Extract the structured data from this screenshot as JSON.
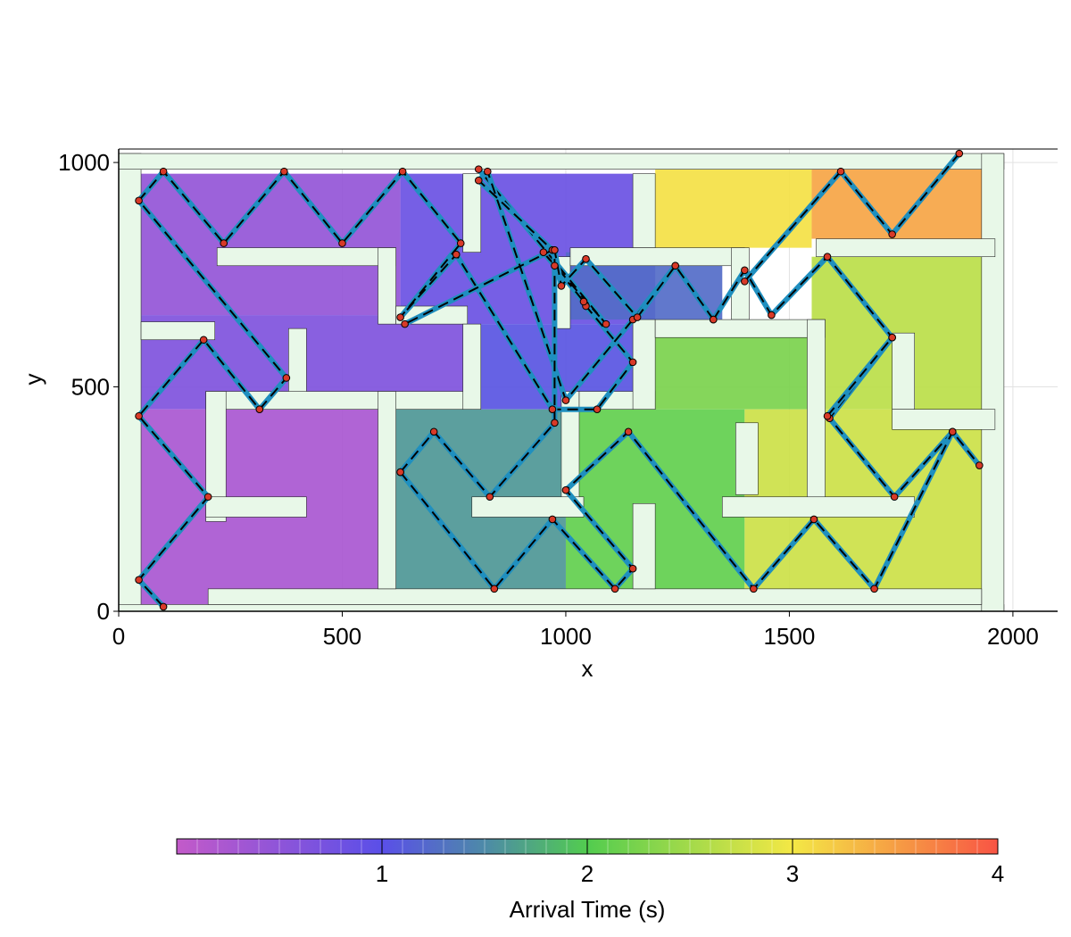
{
  "chart_data": {
    "type": "heatmap",
    "title": "",
    "xlabel": "x",
    "ylabel": "y",
    "xlim": [
      0,
      2100
    ],
    "ylim": [
      0,
      1030
    ],
    "xticks": [
      0,
      500,
      1000,
      1500,
      2000
    ],
    "yticks": [
      0,
      500,
      1000
    ],
    "grid": true,
    "colorbar": {
      "label": "Arrival Time (s)",
      "range": [
        0,
        4
      ],
      "ticks": [
        1,
        2,
        3,
        4
      ],
      "placement": "bottom",
      "stops": [
        "#c35ac9",
        "#5a4fe8",
        "#4d8aa8",
        "#52cc4f",
        "#f4e845",
        "#f85444"
      ]
    },
    "regions": [
      {
        "t": 0.45,
        "x0": 50,
        "y0": 660,
        "x1": 630,
        "y1": 975
      },
      {
        "t": 0.65,
        "x0": 50,
        "y0": 450,
        "x1": 770,
        "y1": 660
      },
      {
        "t": 0.25,
        "x0": 50,
        "y0": 10,
        "x1": 580,
        "y1": 450
      },
      {
        "t": 0.85,
        "x0": 630,
        "y0": 640,
        "x1": 1200,
        "y1": 975
      },
      {
        "t": 1.05,
        "x0": 770,
        "y0": 450,
        "x1": 1200,
        "y1": 640
      },
      {
        "t": 1.25,
        "x0": 1000,
        "y0": 650,
        "x1": 1350,
        "y1": 800
      },
      {
        "t": 1.6,
        "x0": 580,
        "y0": 50,
        "x1": 1000,
        "y1": 450
      },
      {
        "t": 2.1,
        "x0": 1000,
        "y0": 50,
        "x1": 1400,
        "y1": 450
      },
      {
        "t": 2.25,
        "x0": 1200,
        "y0": 450,
        "x1": 1550,
        "y1": 650
      },
      {
        "t": 2.75,
        "x0": 1400,
        "y0": 50,
        "x1": 1960,
        "y1": 450
      },
      {
        "t": 2.65,
        "x0": 1550,
        "y0": 450,
        "x1": 1960,
        "y1": 790
      },
      {
        "t": 3.05,
        "x0": 1200,
        "y0": 810,
        "x1": 1550,
        "y1": 990
      },
      {
        "t": 3.45,
        "x0": 1550,
        "y0": 830,
        "x1": 1960,
        "y1": 990
      },
      {
        "t": 3.95,
        "x0": 1920,
        "y0": 995,
        "x1": 1960,
        "y1": 1015
      }
    ],
    "walls": [
      {
        "x0": 0,
        "y0": 0,
        "x1": 50,
        "y1": 1020
      },
      {
        "x0": 0,
        "y0": 985,
        "x1": 1980,
        "y1": 1020
      },
      {
        "x0": 0,
        "y0": 0,
        "x1": 1980,
        "y1": 15
      },
      {
        "x0": 1930,
        "y0": 0,
        "x1": 1980,
        "y1": 1020
      },
      {
        "x0": 200,
        "y0": 15,
        "x1": 1930,
        "y1": 50
      },
      {
        "x0": 220,
        "y0": 770,
        "x1": 620,
        "y1": 810
      },
      {
        "x0": 580,
        "y0": 640,
        "x1": 620,
        "y1": 810
      },
      {
        "x0": 620,
        "y0": 640,
        "x1": 780,
        "y1": 680
      },
      {
        "x0": 770,
        "y0": 800,
        "x1": 810,
        "y1": 975
      },
      {
        "x0": 1150,
        "y0": 810,
        "x1": 1200,
        "y1": 975
      },
      {
        "x0": 975,
        "y0": 630,
        "x1": 1010,
        "y1": 790
      },
      {
        "x0": 1010,
        "y0": 770,
        "x1": 1400,
        "y1": 810
      },
      {
        "x0": 1370,
        "y0": 650,
        "x1": 1410,
        "y1": 810
      },
      {
        "x0": 1560,
        "y0": 790,
        "x1": 1960,
        "y1": 830
      },
      {
        "x0": 50,
        "y0": 605,
        "x1": 215,
        "y1": 645
      },
      {
        "x0": 380,
        "y0": 450,
        "x1": 420,
        "y1": 630
      },
      {
        "x0": 195,
        "y0": 450,
        "x1": 790,
        "y1": 490
      },
      {
        "x0": 195,
        "y0": 200,
        "x1": 240,
        "y1": 490
      },
      {
        "x0": 195,
        "y0": 210,
        "x1": 420,
        "y1": 255
      },
      {
        "x0": 580,
        "y0": 50,
        "x1": 620,
        "y1": 490
      },
      {
        "x0": 770,
        "y0": 450,
        "x1": 810,
        "y1": 640
      },
      {
        "x0": 990,
        "y0": 230,
        "x1": 1030,
        "y1": 490
      },
      {
        "x0": 1030,
        "y0": 450,
        "x1": 1200,
        "y1": 490
      },
      {
        "x0": 1150,
        "y0": 450,
        "x1": 1200,
        "y1": 650
      },
      {
        "x0": 1200,
        "y0": 610,
        "x1": 1580,
        "y1": 650
      },
      {
        "x0": 1540,
        "y0": 230,
        "x1": 1580,
        "y1": 650
      },
      {
        "x0": 1380,
        "y0": 260,
        "x1": 1430,
        "y1": 420
      },
      {
        "x0": 1350,
        "y0": 210,
        "x1": 1780,
        "y1": 255
      },
      {
        "x0": 1730,
        "y0": 450,
        "x1": 1780,
        "y1": 620
      },
      {
        "x0": 1730,
        "y0": 405,
        "x1": 1960,
        "y1": 450
      },
      {
        "x0": 790,
        "y0": 210,
        "x1": 1040,
        "y1": 255
      },
      {
        "x0": 1150,
        "y0": 50,
        "x1": 1200,
        "y1": 240
      }
    ],
    "paths": [
      [
        [
          100,
          10
        ],
        [
          45,
          70
        ],
        [
          200,
          255
        ],
        [
          45,
          435
        ],
        [
          190,
          605
        ],
        [
          315,
          450
        ],
        [
          375,
          520
        ],
        [
          45,
          915
        ],
        [
          100,
          980
        ],
        [
          235,
          820
        ],
        [
          370,
          980
        ],
        [
          500,
          820
        ],
        [
          635,
          980
        ],
        [
          765,
          820
        ],
        [
          630,
          655
        ],
        [
          755,
          795
        ],
        [
          970,
          450
        ],
        [
          1070,
          450
        ],
        [
          1150,
          555
        ],
        [
          1045,
          680
        ],
        [
          1040,
          690
        ],
        [
          975,
          770
        ],
        [
          950,
          800
        ],
        [
          1090,
          640
        ],
        [
          805,
          985
        ]
      ],
      [
        [
          1330,
          650
        ],
        [
          1245,
          770
        ],
        [
          1150,
          650
        ],
        [
          1000,
          470
        ],
        [
          825,
          980
        ],
        [
          805,
          960
        ],
        [
          970,
          805
        ],
        [
          640,
          640
        ]
      ],
      [
        [
          630,
          310
        ],
        [
          705,
          400
        ],
        [
          830,
          255
        ],
        [
          975,
          420
        ],
        [
          975,
          805
        ],
        [
          990,
          725
        ],
        [
          1045,
          785
        ],
        [
          1160,
          655
        ],
        [
          1245,
          770
        ]
      ],
      [
        [
          1330,
          650
        ],
        [
          1400,
          760
        ],
        [
          1460,
          660
        ],
        [
          1585,
          790
        ],
        [
          1730,
          610
        ],
        [
          1590,
          430
        ],
        [
          1735,
          255
        ],
        [
          1865,
          400
        ],
        [
          1925,
          325
        ]
      ],
      [
        [
          1400,
          735
        ],
        [
          1615,
          980
        ],
        [
          1730,
          840
        ],
        [
          1880,
          1020
        ]
      ],
      [
        [
          1585,
          435
        ],
        [
          1730,
          610
        ]
      ],
      [
        [
          630,
          310
        ],
        [
          840,
          50
        ],
        [
          970,
          205
        ],
        [
          1110,
          50
        ],
        [
          1150,
          95
        ],
        [
          1000,
          270
        ],
        [
          1140,
          400
        ],
        [
          1420,
          50
        ],
        [
          1555,
          205
        ],
        [
          1690,
          50
        ],
        [
          1865,
          400
        ]
      ]
    ]
  }
}
